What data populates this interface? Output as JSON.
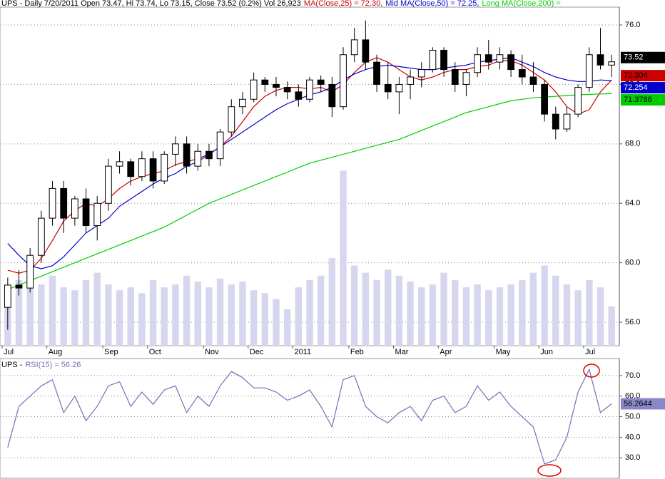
{
  "chart_data": [
    {
      "type": "candlestick",
      "title": "UPS - Daily 7/20/2011 Open 73.47, Hi 73.74, Lo 73.15, Close 73.52 (0.2%) Vol 26,923",
      "categories": [
        "Jul",
        null,
        null,
        null,
        "Aug",
        null,
        null,
        null,
        null,
        "Sep",
        null,
        null,
        null,
        "Oct",
        null,
        null,
        null,
        null,
        "Nov",
        null,
        null,
        null,
        "Dec",
        null,
        null,
        null,
        "2011",
        null,
        null,
        null,
        null,
        "Feb",
        null,
        null,
        null,
        "Mar",
        null,
        null,
        null,
        "Apr",
        null,
        null,
        null,
        null,
        "May",
        null,
        null,
        null,
        "Jun",
        null,
        null,
        null,
        "Jul",
        null,
        null
      ],
      "open": [
        57,
        58.5,
        58.3,
        60.5,
        63,
        65,
        63,
        64.3,
        62.5,
        64,
        66.5,
        66.8,
        65.8,
        67,
        65.5,
        67.3,
        68,
        66.5,
        67.5,
        67,
        68.8,
        70.5,
        71,
        72.3,
        72,
        71.8,
        71.5,
        71,
        72.3,
        72,
        70.5,
        74,
        75,
        73.5,
        72,
        71.5,
        72,
        72.5,
        73,
        74.3,
        73,
        72,
        72.8,
        74,
        73.5,
        74,
        73,
        72.5,
        72,
        70,
        69,
        70,
        71.8,
        74,
        73.3
      ],
      "high": [
        59,
        59.5,
        61,
        63.5,
        65.5,
        65.5,
        64.5,
        65,
        64.5,
        67,
        67.5,
        67,
        67.5,
        67.5,
        67.5,
        68.5,
        68.5,
        68,
        68,
        69,
        71,
        71.5,
        72.8,
        72.5,
        72.5,
        72.2,
        72,
        72.5,
        72.6,
        72.5,
        74.5,
        75.8,
        76.3,
        74,
        73.5,
        72.5,
        73,
        73.5,
        74.5,
        74.5,
        73.5,
        73,
        74.5,
        75,
        74.5,
        74.3,
        74,
        73.5,
        72.3,
        70.5,
        70.5,
        72,
        74.5,
        75.8,
        74
      ],
      "low": [
        55.5,
        57.8,
        58,
        60,
        62.5,
        62,
        62.5,
        62,
        61.5,
        63.5,
        66,
        65.2,
        65.5,
        65,
        65.3,
        66.5,
        66,
        66.2,
        66.5,
        66.5,
        68.5,
        70,
        70.8,
        71.5,
        71.2,
        71,
        70.5,
        70.8,
        71.5,
        69.8,
        70.3,
        73.5,
        73,
        71.5,
        71,
        70,
        71,
        71.8,
        72.8,
        72.5,
        71.5,
        71.2,
        72.5,
        73,
        73,
        72.5,
        72,
        71.5,
        69.5,
        68.3,
        68.8,
        69.8,
        71.5,
        73,
        72.5
      ],
      "close": [
        58.5,
        58.3,
        60.5,
        63,
        65,
        63,
        64.3,
        62.5,
        64,
        66.5,
        66.8,
        65.8,
        67,
        65.5,
        67.3,
        68,
        66.5,
        67.5,
        67,
        68.8,
        70.5,
        71,
        72.3,
        72,
        71.8,
        71.5,
        71,
        72.3,
        72,
        70.5,
        74,
        75,
        73.5,
        72,
        71.5,
        72,
        72.5,
        73,
        74.3,
        73,
        72,
        72.8,
        74,
        73.5,
        74,
        73,
        72.5,
        72,
        70,
        69,
        70,
        71.8,
        74,
        73.3,
        73.52
      ],
      "color": "#000000",
      "volume": [
        40000,
        45000,
        50000,
        42000,
        48000,
        40000,
        38000,
        45000,
        50000,
        42000,
        38000,
        40000,
        36000,
        45000,
        40000,
        42000,
        48000,
        44000,
        40000,
        46000,
        42000,
        44000,
        38000,
        36000,
        32000,
        25000,
        40000,
        45000,
        48000,
        60000,
        120000,
        55000,
        50000,
        45000,
        52000,
        48000,
        44000,
        40000,
        42000,
        50000,
        45000,
        40000,
        42000,
        38000,
        40000,
        42000,
        45000,
        50000,
        55000,
        48000,
        42000,
        38000,
        45000,
        40000,
        26923
      ],
      "volume_color": "#d6d6ee",
      "volume_lim": [
        0,
        232000
      ],
      "series": [
        {
          "name": "MA(Close,25) = 72.30,",
          "color": "#cc0000",
          "values": [
            59.5,
            59.3,
            59.5,
            60.3,
            61.5,
            62.8,
            63.5,
            64,
            63.8,
            64.3,
            65,
            65.5,
            65.8,
            66,
            66.2,
            66.6,
            66.8,
            67,
            67.3,
            67.8,
            68.5,
            69.5,
            70.5,
            71.2,
            71.6,
            71.8,
            71.8,
            71.7,
            71.8,
            71.5,
            72,
            72.8,
            73.5,
            73.8,
            73.5,
            73,
            72.5,
            72.3,
            72.5,
            72.8,
            73,
            73,
            73.2,
            73.3,
            73.6,
            73.6,
            73.3,
            72.8,
            72.3,
            71.5,
            70.5,
            70,
            70.3,
            71.5,
            72.304
          ]
        },
        {
          "name": "Mid MA(Close,50) = 72.25,",
          "color": "#0000cc",
          "values": [
            61.3,
            60.5,
            59.8,
            59.6,
            59.8,
            60.4,
            61.2,
            62,
            62.5,
            63,
            63.8,
            64.3,
            64.8,
            65.3,
            65.7,
            66,
            66.5,
            66.8,
            67.3,
            67.8,
            68.3,
            68.8,
            69.3,
            69.8,
            70.3,
            70.7,
            71,
            71.3,
            71.5,
            71.8,
            72.3,
            72.7,
            73,
            73.2,
            73.3,
            73.2,
            73.1,
            73,
            73,
            73.1,
            73.2,
            73.3,
            73.5,
            73.6,
            73.7,
            73.8,
            73.5,
            73.2,
            72.8,
            72.5,
            72.3,
            72.2,
            72.2,
            72.3,
            72.254
          ]
        },
        {
          "name": "Long MA(Close,200) =",
          "color": "#00cc00",
          "values": [
            58.2,
            58.5,
            58.8,
            59.1,
            59.4,
            59.7,
            60,
            60.3,
            60.6,
            60.9,
            61.2,
            61.5,
            61.8,
            62.1,
            62.4,
            62.8,
            63.2,
            63.6,
            64,
            64.3,
            64.6,
            64.9,
            65.2,
            65.5,
            65.8,
            66.1,
            66.4,
            66.7,
            66.9,
            67.1,
            67.3,
            67.5,
            67.7,
            67.9,
            68.1,
            68.3,
            68.6,
            68.9,
            69.2,
            69.5,
            69.8,
            70.1,
            70.3,
            70.5,
            70.7,
            70.9,
            71,
            71.1,
            71.15,
            71.2,
            71.25,
            71.3,
            71.33,
            71.36,
            71.3786
          ]
        }
      ],
      "ylim": [
        54.42,
        77.2
      ],
      "yticks": [
        {
          "value": 56,
          "label": "56.0"
        },
        {
          "value": 60,
          "label": "60.0"
        },
        {
          "value": 64,
          "label": "64.0"
        },
        {
          "value": 68,
          "label": "68.0"
        },
        {
          "value": 72,
          "label": "72.0"
        },
        {
          "value": 76,
          "label": "76.0"
        }
      ],
      "grid": true
    },
    {
      "type": "line",
      "title": "UPS -",
      "series": [
        {
          "name": "RSI(15) = 56.26",
          "color": "#7070b8",
          "values": [
            35,
            55,
            60,
            65,
            68,
            52,
            60,
            48,
            55,
            65,
            67,
            55,
            62,
            56,
            63,
            65,
            52,
            60,
            55,
            65,
            72,
            69,
            64,
            64,
            62,
            58,
            60,
            63,
            55,
            45,
            68,
            70,
            55,
            50,
            47,
            52,
            55,
            48,
            58,
            60,
            52,
            55,
            65,
            58,
            62,
            55,
            50,
            45,
            27,
            29,
            40,
            62,
            73,
            52,
            56.2644
          ]
        }
      ],
      "ylim": [
        20,
        78.3
      ],
      "yticks": [
        {
          "value": 30,
          "label": "30.0"
        },
        {
          "value": 40,
          "label": "40.0"
        },
        {
          "value": 50,
          "label": "50.0"
        },
        {
          "value": 60,
          "label": "60.0"
        },
        {
          "value": 70,
          "label": "70.0"
        }
      ],
      "grid": true
    }
  ]
}
